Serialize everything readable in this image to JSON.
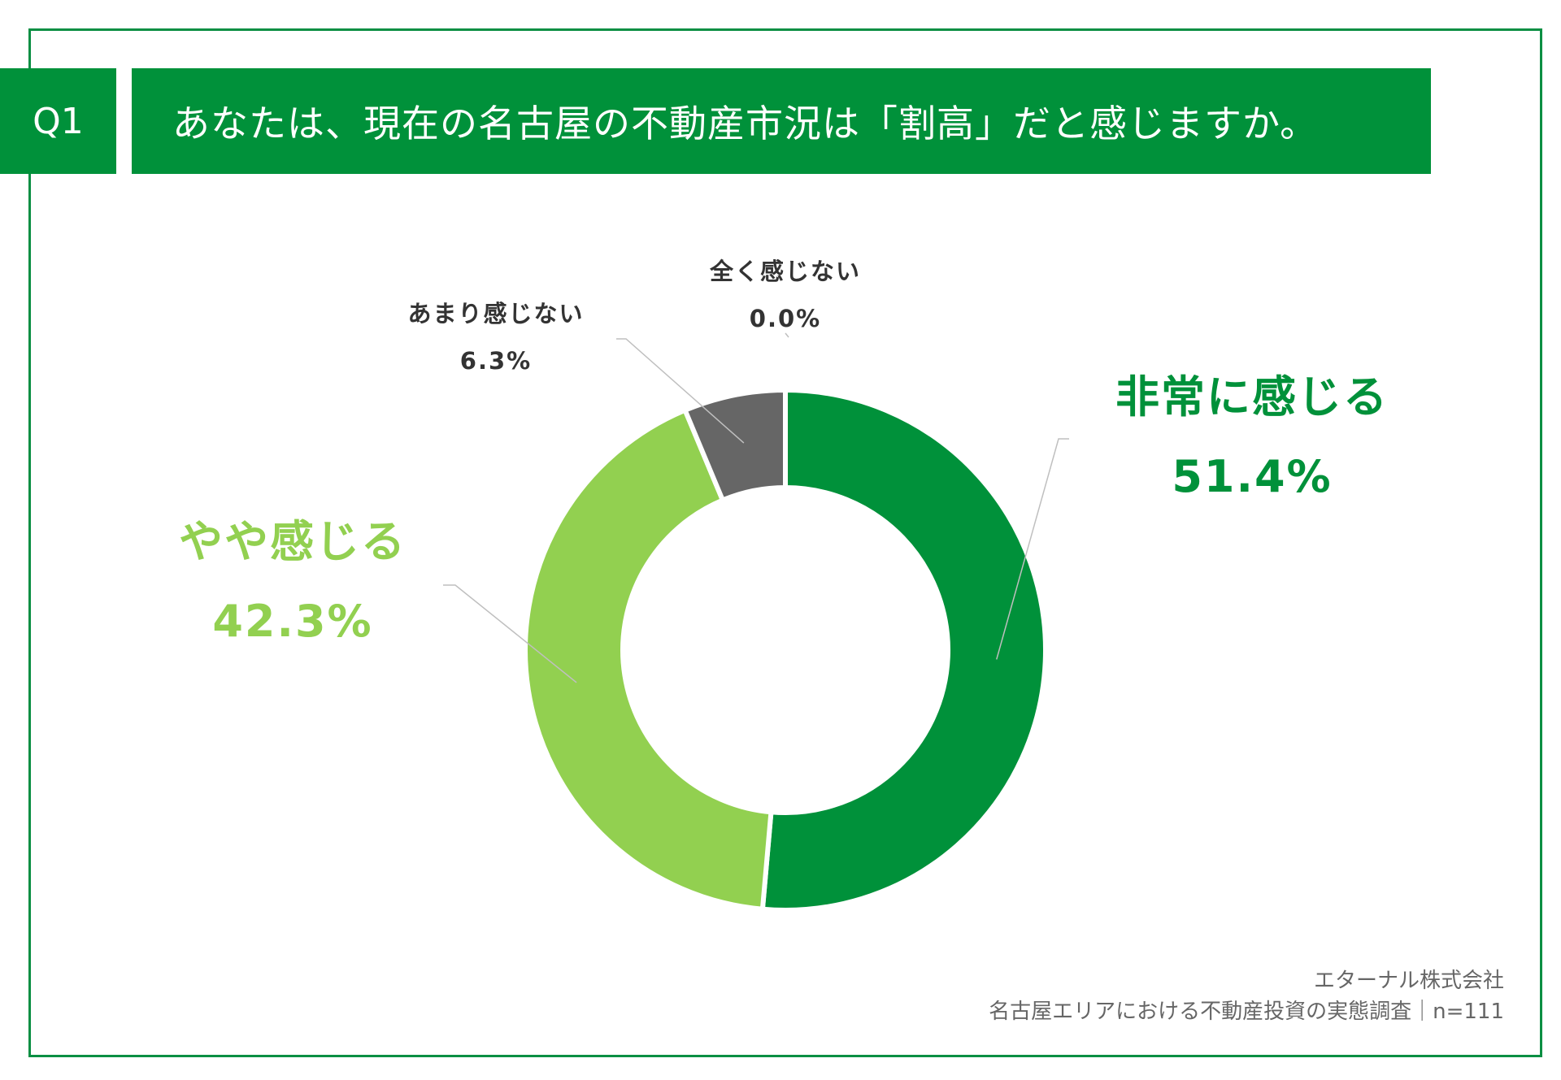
{
  "header": {
    "question_number": "Q1",
    "question_text": "あなたは、現在の名古屋の不動産市況は「割高」だと感じますか。"
  },
  "colors": {
    "brand_green": "#00913a",
    "light_green": "#92d050",
    "gray": "#666666",
    "frame": "#0b8f43"
  },
  "chart_data": {
    "type": "pie",
    "donut": true,
    "start_angle": "12 o'clock, clockwise",
    "slices": [
      {
        "label": "非常に感じる",
        "value": 51.4,
        "value_label": "51.4%",
        "color": "#00913a"
      },
      {
        "label": "やや感じる",
        "value": 42.3,
        "value_label": "42.3%",
        "color": "#92d050"
      },
      {
        "label": "あまり感じない",
        "value": 6.3,
        "value_label": "6.3%",
        "color": "#666666"
      },
      {
        "label": "全く感じない",
        "value": 0.0,
        "value_label": "0.0%",
        "color": "#333333"
      }
    ]
  },
  "footer": {
    "company": "エターナル株式会社",
    "survey": "名古屋エリアにおける不動産投資の実態調査｜n=111"
  }
}
